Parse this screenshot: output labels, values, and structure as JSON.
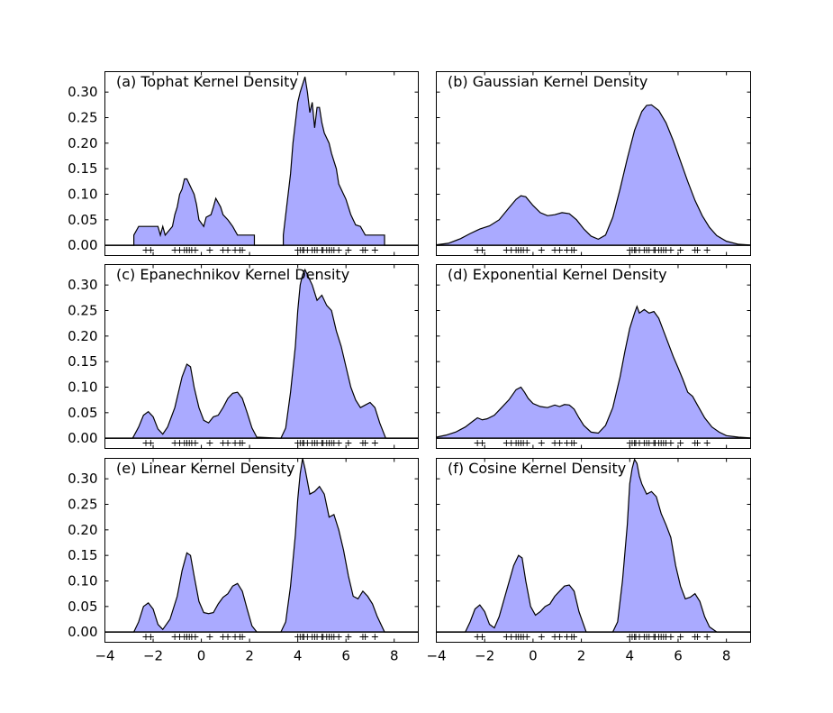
{
  "chart_data": [
    {
      "panel": "a",
      "type": "area",
      "title": "(a) Tophat Kernel Density",
      "kernel": "tophat",
      "xlim": [
        -4,
        9
      ],
      "ylim": [
        -0.02,
        0.34
      ],
      "xticks": [
        "−4",
        "−2",
        "0",
        "2",
        "4",
        "6",
        "8"
      ],
      "yticks": [
        "0.00",
        "0.05",
        "0.10",
        "0.15",
        "0.20",
        "0.25",
        "0.30"
      ],
      "x": [
        -4.0,
        -2.8,
        -2.8,
        -2.6,
        -2.2,
        -1.8,
        -1.7,
        -1.6,
        -1.5,
        -1.2,
        -1.1,
        -1.0,
        -0.9,
        -0.8,
        -0.7,
        -0.6,
        -0.4,
        -0.3,
        -0.2,
        -0.1,
        0.1,
        0.2,
        0.4,
        0.5,
        0.6,
        0.8,
        0.9,
        1.1,
        1.3,
        1.5,
        1.6,
        1.8,
        2.0,
        2.2,
        2.2,
        3.4,
        3.4,
        3.5,
        3.7,
        3.8,
        3.9,
        4.0,
        4.1,
        4.3,
        4.4,
        4.5,
        4.6,
        4.7,
        4.8,
        4.9,
        5.0,
        5.1,
        5.3,
        5.4,
        5.6,
        5.7,
        5.9,
        6.0,
        6.1,
        6.2,
        6.4,
        6.6,
        6.8,
        7.0,
        7.2,
        7.4,
        7.6,
        7.6,
        9.0
      ],
      "y": [
        0,
        0,
        0.02,
        0.037,
        0.037,
        0.037,
        0.02,
        0.037,
        0.02,
        0.037,
        0.06,
        0.075,
        0.1,
        0.11,
        0.13,
        0.13,
        0.11,
        0.1,
        0.08,
        0.05,
        0.037,
        0.055,
        0.06,
        0.075,
        0.092,
        0.075,
        0.06,
        0.05,
        0.037,
        0.02,
        0.02,
        0.02,
        0.02,
        0.02,
        0,
        0,
        0.02,
        0.06,
        0.14,
        0.2,
        0.24,
        0.28,
        0.3,
        0.33,
        0.3,
        0.26,
        0.28,
        0.23,
        0.27,
        0.27,
        0.24,
        0.22,
        0.2,
        0.18,
        0.15,
        0.12,
        0.1,
        0.09,
        0.075,
        0.06,
        0.04,
        0.037,
        0.02,
        0.02,
        0.02,
        0.02,
        0.02,
        0,
        0
      ]
    },
    {
      "panel": "b",
      "type": "area",
      "title": "(b) Gaussian Kernel Density",
      "kernel": "gaussian",
      "xlim": [
        -4,
        9
      ],
      "ylim": [
        -0.02,
        0.34
      ],
      "xticks": [
        "−4",
        "−2",
        "0",
        "2",
        "4",
        "6",
        "8"
      ],
      "yticks": [
        "0.00",
        "0.05",
        "0.10",
        "0.15",
        "0.20",
        "0.25",
        "0.30"
      ],
      "x": [
        -4.0,
        -3.5,
        -3.0,
        -2.6,
        -2.2,
        -1.8,
        -1.4,
        -1.0,
        -0.7,
        -0.5,
        -0.3,
        0.0,
        0.3,
        0.6,
        0.9,
        1.2,
        1.5,
        1.8,
        2.1,
        2.4,
        2.7,
        3.0,
        3.3,
        3.6,
        3.9,
        4.2,
        4.5,
        4.7,
        4.9,
        5.2,
        5.5,
        5.8,
        6.1,
        6.4,
        6.7,
        7.0,
        7.3,
        7.6,
        8.0,
        8.5,
        9.0
      ],
      "y": [
        0.001,
        0.004,
        0.013,
        0.023,
        0.032,
        0.038,
        0.05,
        0.073,
        0.09,
        0.097,
        0.095,
        0.078,
        0.064,
        0.058,
        0.06,
        0.064,
        0.062,
        0.05,
        0.032,
        0.018,
        0.012,
        0.02,
        0.055,
        0.11,
        0.17,
        0.225,
        0.262,
        0.274,
        0.275,
        0.264,
        0.24,
        0.205,
        0.165,
        0.125,
        0.088,
        0.058,
        0.035,
        0.019,
        0.008,
        0.002,
        0.0005
      ]
    },
    {
      "panel": "c",
      "type": "area",
      "title": "(c) Epanechnikov Kernel Density",
      "kernel": "epanechnikov",
      "xlim": [
        -4,
        9
      ],
      "ylim": [
        -0.02,
        0.34
      ],
      "xticks": [
        "−4",
        "−2",
        "0",
        "2",
        "4",
        "6",
        "8"
      ],
      "yticks": [
        "0.00",
        "0.05",
        "0.10",
        "0.15",
        "0.20",
        "0.25",
        "0.30"
      ],
      "x": [
        -4.0,
        -2.85,
        -2.6,
        -2.4,
        -2.2,
        -2.0,
        -1.8,
        -1.6,
        -1.4,
        -1.1,
        -0.8,
        -0.6,
        -0.45,
        -0.3,
        -0.1,
        0.1,
        0.3,
        0.5,
        0.7,
        0.9,
        1.1,
        1.3,
        1.5,
        1.7,
        1.9,
        2.1,
        2.3,
        3.3,
        3.5,
        3.7,
        3.9,
        4.0,
        4.1,
        4.2,
        4.3,
        4.4,
        4.6,
        4.8,
        5.0,
        5.2,
        5.4,
        5.6,
        5.8,
        6.0,
        6.2,
        6.4,
        6.6,
        6.8,
        7.0,
        7.2,
        7.4,
        7.65,
        9.0
      ],
      "y": [
        0,
        0,
        0.022,
        0.045,
        0.052,
        0.042,
        0.018,
        0.008,
        0.022,
        0.06,
        0.12,
        0.145,
        0.14,
        0.1,
        0.06,
        0.035,
        0.03,
        0.042,
        0.045,
        0.06,
        0.078,
        0.088,
        0.09,
        0.078,
        0.05,
        0.02,
        0.002,
        0,
        0.02,
        0.09,
        0.18,
        0.25,
        0.3,
        0.32,
        0.33,
        0.32,
        0.3,
        0.27,
        0.28,
        0.26,
        0.25,
        0.21,
        0.18,
        0.14,
        0.1,
        0.075,
        0.06,
        0.065,
        0.07,
        0.06,
        0.03,
        0,
        0
      ]
    },
    {
      "panel": "d",
      "type": "area",
      "title": "(d) Exponential Kernel Density",
      "kernel": "exponential",
      "xlim": [
        -4,
        9
      ],
      "ylim": [
        -0.02,
        0.34
      ],
      "xticks": [
        "−4",
        "−2",
        "0",
        "2",
        "4",
        "6",
        "8"
      ],
      "yticks": [
        "0.00",
        "0.05",
        "0.10",
        "0.15",
        "0.20",
        "0.25",
        "0.30"
      ],
      "x": [
        -4.0,
        -3.6,
        -3.2,
        -2.8,
        -2.5,
        -2.3,
        -2.1,
        -1.9,
        -1.6,
        -1.3,
        -1.0,
        -0.7,
        -0.5,
        -0.35,
        -0.2,
        0.0,
        0.3,
        0.6,
        0.9,
        1.1,
        1.3,
        1.5,
        1.7,
        1.9,
        2.1,
        2.4,
        2.7,
        3.0,
        3.3,
        3.6,
        3.8,
        4.0,
        4.2,
        4.3,
        4.4,
        4.6,
        4.8,
        5.0,
        5.2,
        5.4,
        5.6,
        5.8,
        6.0,
        6.2,
        6.4,
        6.6,
        6.8,
        7.1,
        7.4,
        7.7,
        8.0,
        8.5,
        9.0
      ],
      "y": [
        0.002,
        0.006,
        0.012,
        0.022,
        0.033,
        0.04,
        0.036,
        0.038,
        0.045,
        0.06,
        0.075,
        0.095,
        0.1,
        0.09,
        0.078,
        0.068,
        0.062,
        0.06,
        0.065,
        0.062,
        0.066,
        0.065,
        0.057,
        0.04,
        0.025,
        0.012,
        0.01,
        0.025,
        0.06,
        0.12,
        0.17,
        0.215,
        0.245,
        0.258,
        0.245,
        0.252,
        0.245,
        0.248,
        0.235,
        0.21,
        0.185,
        0.16,
        0.138,
        0.115,
        0.09,
        0.082,
        0.065,
        0.04,
        0.022,
        0.012,
        0.005,
        0.002,
        0.0005
      ]
    },
    {
      "panel": "e",
      "type": "area",
      "title": "(e) Linear Kernel Density",
      "kernel": "linear",
      "xlim": [
        -4,
        9
      ],
      "ylim": [
        -0.02,
        0.34
      ],
      "xticks": [
        "−4",
        "−2",
        "0",
        "2",
        "4",
        "6",
        "8"
      ],
      "yticks": [
        "0.00",
        "0.05",
        "0.10",
        "0.15",
        "0.20",
        "0.25",
        "0.30"
      ],
      "x": [
        -4.0,
        -2.8,
        -2.6,
        -2.4,
        -2.2,
        -2.0,
        -1.8,
        -1.6,
        -1.3,
        -1.0,
        -0.8,
        -0.6,
        -0.45,
        -0.3,
        -0.1,
        0.1,
        0.3,
        0.5,
        0.7,
        0.9,
        1.1,
        1.3,
        1.5,
        1.7,
        1.9,
        2.1,
        2.3,
        3.3,
        3.5,
        3.7,
        3.9,
        4.0,
        4.1,
        4.2,
        4.3,
        4.4,
        4.5,
        4.7,
        4.9,
        5.1,
        5.3,
        5.5,
        5.7,
        5.9,
        6.1,
        6.3,
        6.5,
        6.7,
        6.9,
        7.1,
        7.3,
        7.6,
        9.0
      ],
      "y": [
        0,
        0,
        0.02,
        0.05,
        0.057,
        0.045,
        0.015,
        0.005,
        0.025,
        0.07,
        0.12,
        0.155,
        0.15,
        0.11,
        0.06,
        0.038,
        0.036,
        0.038,
        0.055,
        0.068,
        0.075,
        0.09,
        0.095,
        0.08,
        0.045,
        0.012,
        0,
        0,
        0.02,
        0.09,
        0.19,
        0.26,
        0.31,
        0.34,
        0.32,
        0.295,
        0.27,
        0.275,
        0.285,
        0.27,
        0.225,
        0.23,
        0.2,
        0.16,
        0.11,
        0.07,
        0.065,
        0.08,
        0.07,
        0.055,
        0.03,
        0,
        0
      ]
    },
    {
      "panel": "f",
      "type": "area",
      "title": "(f) Cosine Kernel Density",
      "kernel": "cosine",
      "xlim": [
        -4,
        9
      ],
      "ylim": [
        -0.02,
        0.34
      ],
      "xticks": [
        "−4",
        "−2",
        "0",
        "2",
        "4",
        "6",
        "8"
      ],
      "yticks": [
        "0.00",
        "0.05",
        "0.10",
        "0.15",
        "0.20",
        "0.25",
        "0.30"
      ],
      "x": [
        -4.0,
        -2.8,
        -2.6,
        -2.4,
        -2.2,
        -2.0,
        -1.8,
        -1.6,
        -1.4,
        -1.1,
        -0.8,
        -0.6,
        -0.45,
        -0.3,
        -0.1,
        0.1,
        0.3,
        0.5,
        0.7,
        0.9,
        1.1,
        1.3,
        1.5,
        1.7,
        1.9,
        2.2,
        3.3,
        3.5,
        3.7,
        3.9,
        4.0,
        4.1,
        4.2,
        4.3,
        4.4,
        4.5,
        4.7,
        4.9,
        5.1,
        5.3,
        5.5,
        5.7,
        5.9,
        6.1,
        6.3,
        6.5,
        6.7,
        6.9,
        7.1,
        7.3,
        7.6,
        9.0
      ],
      "y": [
        0,
        0,
        0.02,
        0.045,
        0.053,
        0.04,
        0.015,
        0.008,
        0.03,
        0.08,
        0.13,
        0.15,
        0.145,
        0.1,
        0.05,
        0.033,
        0.04,
        0.05,
        0.055,
        0.07,
        0.08,
        0.09,
        0.092,
        0.08,
        0.04,
        0,
        0,
        0.02,
        0.1,
        0.21,
        0.29,
        0.32,
        0.338,
        0.33,
        0.305,
        0.29,
        0.27,
        0.275,
        0.265,
        0.232,
        0.21,
        0.185,
        0.13,
        0.09,
        0.065,
        0.068,
        0.075,
        0.06,
        0.03,
        0.01,
        0,
        0
      ]
    }
  ],
  "rug_samples": [
    -2.3,
    -2.1,
    -1.1,
    -0.9,
    -0.7,
    -0.6,
    -0.5,
    -0.4,
    -0.25,
    0.35,
    0.9,
    1.1,
    1.4,
    1.6,
    1.7,
    4.0,
    4.1,
    4.2,
    4.25,
    4.4,
    4.6,
    4.7,
    4.8,
    5.0,
    5.05,
    5.2,
    5.3,
    5.4,
    5.5,
    5.7,
    6.1,
    6.7,
    6.8,
    7.2
  ]
}
